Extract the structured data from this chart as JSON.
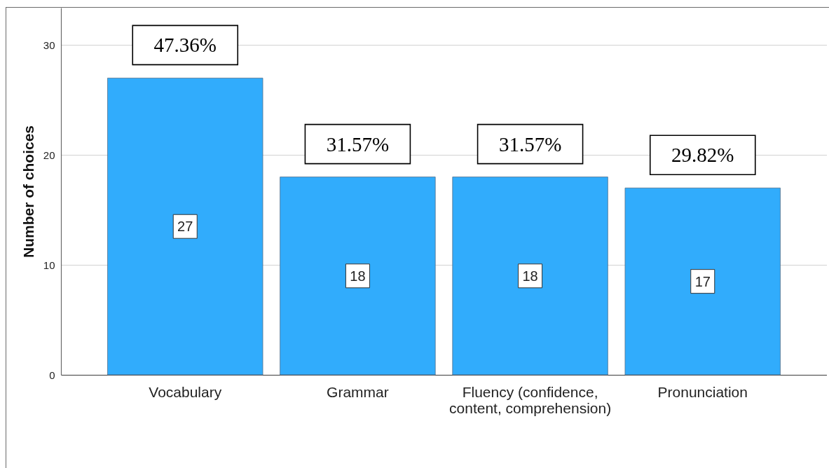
{
  "chart_data": {
    "type": "bar",
    "ylabel": "Number of choices",
    "categories": [
      "Vocabulary",
      "Grammar",
      "Fluency (confidence, content, comprehension)",
      "Pronunciation"
    ],
    "values": [
      27,
      18,
      18,
      17
    ],
    "color": "#31acfc",
    "ylim": [
      0,
      33.4
    ],
    "yticks": [
      0,
      10,
      20,
      30
    ],
    "grid": "y",
    "data_labels": true,
    "annotations": [
      "47.36%",
      "31.57%",
      "31.57%",
      "29.82%"
    ]
  }
}
